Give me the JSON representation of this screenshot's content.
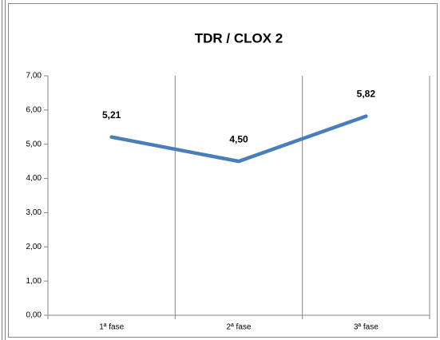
{
  "chart_data": {
    "type": "line",
    "title": "TDR / CLOX 2",
    "categories": [
      "1ª fase",
      "2ª fase",
      "3ª fase"
    ],
    "series": [
      {
        "name": "TDR / CLOX 2",
        "color": "#4a7ebb",
        "values": [
          5.21,
          4.5,
          5.82
        ],
        "value_labels": [
          "5,21",
          "4,50",
          "5,82"
        ]
      }
    ],
    "ylim": [
      0,
      7
    ],
    "yticks": [
      {
        "value": 0,
        "label": "0,00"
      },
      {
        "value": 1,
        "label": "1,00"
      },
      {
        "value": 2,
        "label": "2,00"
      },
      {
        "value": 3,
        "label": "3,00"
      },
      {
        "value": 4,
        "label": "4,00"
      },
      {
        "value": 5,
        "label": "5,00"
      },
      {
        "value": 6,
        "label": "6,00"
      },
      {
        "value": 7,
        "label": "7,00"
      }
    ],
    "grid": "x"
  }
}
